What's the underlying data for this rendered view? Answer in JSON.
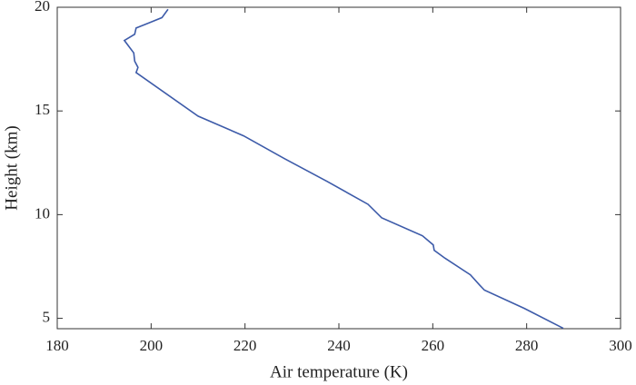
{
  "chart_data": {
    "type": "line",
    "xlabel": "Air temperature (K)",
    "ylabel": "Height (km)",
    "x": [
      287.8,
      279.5,
      271,
      270,
      268,
      262.6,
      260.3,
      260.1,
      257.8,
      249.1,
      246.2,
      237.5,
      228.4,
      219.7,
      210,
      196.8,
      197.2,
      196.5,
      196.3,
      194.3,
      196.5,
      196.8,
      199.7,
      202.3,
      203.6
    ],
    "series": [
      {
        "color": "#3d5ba9",
        "values": [
          4.52,
          5.48,
          6.36,
          6.6,
          7.1,
          7.9,
          8.28,
          8.54,
          8.98,
          9.85,
          10.5,
          11.6,
          12.7,
          13.8,
          14.75,
          16.85,
          17.1,
          17.4,
          17.8,
          18.4,
          18.7,
          19.0,
          19.26,
          19.5,
          19.9
        ]
      }
    ],
    "xlim": [
      180,
      300
    ],
    "xticks": [
      180,
      200,
      220,
      240,
      260,
      280,
      300
    ],
    "ylim": [
      4.5,
      20
    ],
    "yticks": [
      5,
      10,
      15,
      20
    ],
    "grid": false
  }
}
